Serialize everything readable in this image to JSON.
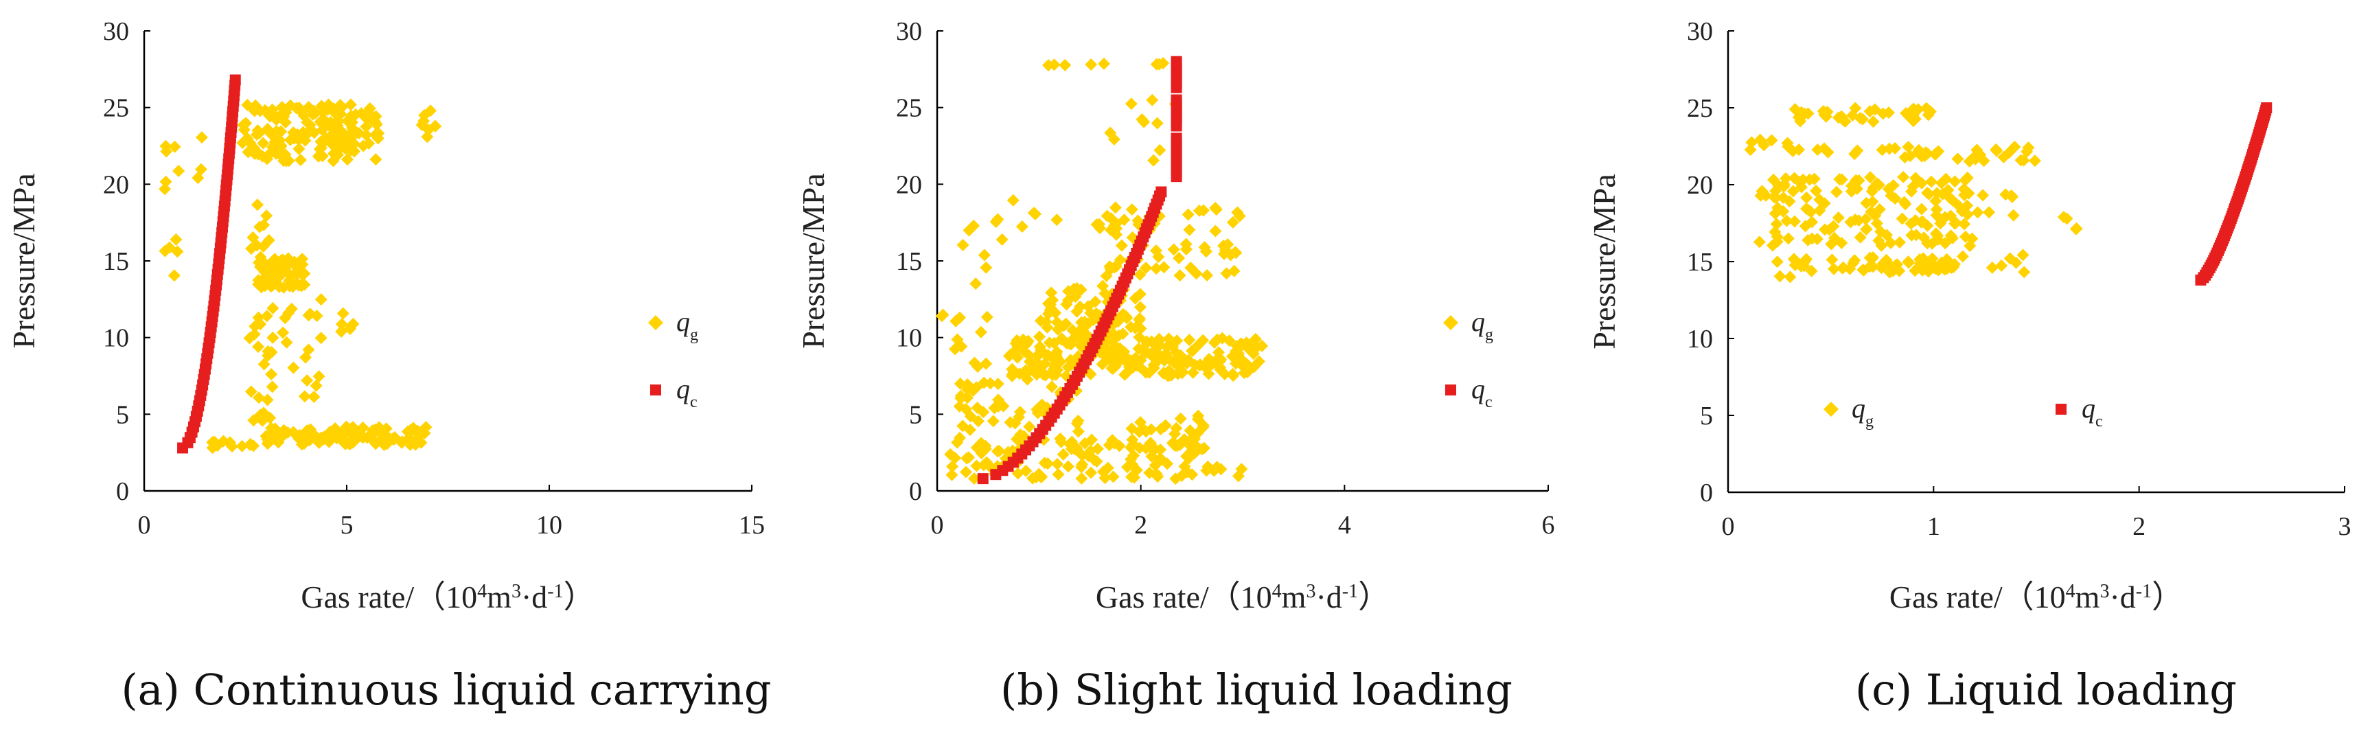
{
  "colors": {
    "qg": "#FFD200",
    "qc": "#E61E1E",
    "axis": "#000000"
  },
  "chart_data": [
    {
      "type": "scatter",
      "caption": "(a) Continuous liquid carrying",
      "ylabel": "Pressure/MPa",
      "xlabel_prefix": "Gas rate/（10",
      "xlabel_sup1": "4",
      "xlabel_mid": "m",
      "xlabel_sup2": "3",
      "xlabel_mid2": "·d",
      "xlabel_sup3": "-1",
      "xlabel_suffix": "）",
      "xlim": [
        0,
        15
      ],
      "ylim": [
        0,
        30
      ],
      "xticks": [
        "0",
        "5",
        "10",
        "15"
      ],
      "yticks": [
        "0",
        "5",
        "10",
        "15",
        "20",
        "25",
        "30"
      ],
      "legend_position": "right-middle-vertical",
      "series": [
        {
          "name": "q",
          "subscript": "g",
          "marker": "diamond",
          "clusters": [
            {
              "x": [
                2.4,
                5.8
              ],
              "y": [
                21.5,
                25.2
              ],
              "n": 170
            },
            {
              "x": [
                2.8,
                4.0
              ],
              "y": [
                13.2,
                15.2
              ],
              "n": 55
            },
            {
              "x": [
                2.6,
                3.2
              ],
              "y": [
                4.5,
                19.0
              ],
              "n": 35
            },
            {
              "x": [
                3.3,
                4.5
              ],
              "y": [
                6.0,
                12.5
              ],
              "n": 18
            },
            {
              "x": [
                4.8,
                5.2
              ],
              "y": [
                10.0,
                12.5
              ],
              "n": 6
            },
            {
              "x": [
                3.0,
                7.0
              ],
              "y": [
                3.0,
                4.2
              ],
              "n": 110
            },
            {
              "x": [
                1.6,
                2.8
              ],
              "y": [
                2.8,
                3.3
              ],
              "n": 12
            },
            {
              "x": [
                6.8,
                7.2
              ],
              "y": [
                23.0,
                25.0
              ],
              "n": 8
            },
            {
              "x": [
                0.3,
                1.5
              ],
              "y": [
                19.5,
                24.0
              ],
              "n": 9
            },
            {
              "x": [
                0.4,
                0.9
              ],
              "y": [
                14.0,
                16.5
              ],
              "n": 5
            }
          ]
        },
        {
          "name": "q",
          "subscript": "c",
          "marker": "square",
          "curve": {
            "x_start": 0.95,
            "x_end": 2.25,
            "y_start": 2.8,
            "y_end": 26.8,
            "power": 0.55
          }
        }
      ]
    },
    {
      "type": "scatter",
      "caption": "(b) Slight liquid loading",
      "ylabel": "Pressure/MPa",
      "xlabel_prefix": "Gas rate/（10",
      "xlabel_sup1": "4",
      "xlabel_mid": "m",
      "xlabel_sup2": "3",
      "xlabel_mid2": "·d",
      "xlabel_sup3": "-1",
      "xlabel_suffix": "）",
      "xlim": [
        0,
        6
      ],
      "ylim": [
        0,
        30
      ],
      "xticks": [
        "0",
        "2",
        "4",
        "6"
      ],
      "yticks": [
        "0",
        "5",
        "10",
        "15",
        "20",
        "25",
        "30"
      ],
      "legend_position": "right-middle-vertical",
      "series": [
        {
          "name": "q",
          "subscript": "g",
          "marker": "diamond",
          "clusters": [
            {
              "x": [
                0.7,
                3.2
              ],
              "y": [
                7.5,
                10.0
              ],
              "n": 230
            },
            {
              "x": [
                1.0,
                2.0
              ],
              "y": [
                10.0,
                13.5
              ],
              "n": 90
            },
            {
              "x": [
                1.5,
                3.0
              ],
              "y": [
                14.0,
                18.5
              ],
              "n": 70
            },
            {
              "x": [
                0.1,
                2.6
              ],
              "y": [
                0.8,
                3.5
              ],
              "n": 110
            },
            {
              "x": [
                0.2,
                1.4
              ],
              "y": [
                3.5,
                7.5
              ],
              "n": 50
            },
            {
              "x": [
                1.9,
                2.7
              ],
              "y": [
                2.5,
                5.0
              ],
              "n": 35
            },
            {
              "x": [
                0.0,
                0.5
              ],
              "y": [
                8.0,
                12.0
              ],
              "n": 12
            },
            {
              "x": [
                0.2,
                1.2
              ],
              "y": [
                13.0,
                19.0
              ],
              "n": 14
            },
            {
              "x": [
                1.7,
                2.5
              ],
              "y": [
                21.5,
                25.5
              ],
              "n": 10
            },
            {
              "x": [
                1.0,
                2.6
              ],
              "y": [
                27.6,
                27.9
              ],
              "n": 8
            },
            {
              "x": [
                2.3,
                3.0
              ],
              "y": [
                0.8,
                1.6
              ],
              "n": 10
            }
          ]
        },
        {
          "name": "q",
          "subscript": "c",
          "marker": "square",
          "curve": {
            "x_start": 0.45,
            "x_end": 2.2,
            "y_start": 0.8,
            "y_end": 19.5,
            "power": 0.62
          },
          "column": {
            "x": 2.35,
            "y_start": 20.0,
            "y_end": 28.0,
            "segments": [
              [
                20.5,
                23.0
              ],
              [
                23.8,
                25.5
              ],
              [
                26.3,
                28.0
              ]
            ]
          }
        }
      ]
    },
    {
      "type": "scatter",
      "caption": "(c) Liquid loading",
      "ylabel": "Pressure/MPa",
      "xlabel_prefix": "Gas rate/（10",
      "xlabel_sup1": "4",
      "xlabel_mid": "m",
      "xlabel_sup2": "3",
      "xlabel_mid2": "·d",
      "xlabel_sup3": "-1",
      "xlabel_suffix": "）",
      "xlim": [
        0,
        3
      ],
      "ylim": [
        0,
        30
      ],
      "xticks": [
        "0",
        "1",
        "2",
        "3"
      ],
      "yticks": [
        "0",
        "5",
        "10",
        "15",
        "20",
        "25",
        "30"
      ],
      "legend_position": "bottom-right-horizontal",
      "series": [
        {
          "name": "q",
          "subscript": "g",
          "marker": "diamond",
          "clusters": [
            {
              "x": [
                0.15,
                1.2
              ],
              "y": [
                16.0,
                20.5
              ],
              "n": 140
            },
            {
              "x": [
                0.3,
                1.1
              ],
              "y": [
                14.3,
                15.3
              ],
              "n": 60
            },
            {
              "x": [
                0.3,
                1.0
              ],
              "y": [
                24.0,
                25.0
              ],
              "n": 35
            },
            {
              "x": [
                0.6,
                1.5
              ],
              "y": [
                21.5,
                22.5
              ],
              "n": 35
            },
            {
              "x": [
                0.1,
                0.5
              ],
              "y": [
                22.0,
                23.0
              ],
              "n": 12
            },
            {
              "x": [
                1.0,
                1.4
              ],
              "y": [
                18.0,
                19.5
              ],
              "n": 12
            },
            {
              "x": [
                1.1,
                1.45
              ],
              "y": [
                14.3,
                15.5
              ],
              "n": 8
            },
            {
              "x": [
                1.55,
                1.7
              ],
              "y": [
                17.0,
                18.0
              ],
              "n": 4
            },
            {
              "x": [
                0.2,
                0.4
              ],
              "y": [
                13.8,
                15.0
              ],
              "n": 5
            }
          ]
        },
        {
          "name": "q",
          "subscript": "c",
          "marker": "square",
          "curve": {
            "x_start": 2.3,
            "x_end": 2.62,
            "y_start": 13.8,
            "y_end": 25.0,
            "power": 0.75
          }
        }
      ]
    }
  ]
}
